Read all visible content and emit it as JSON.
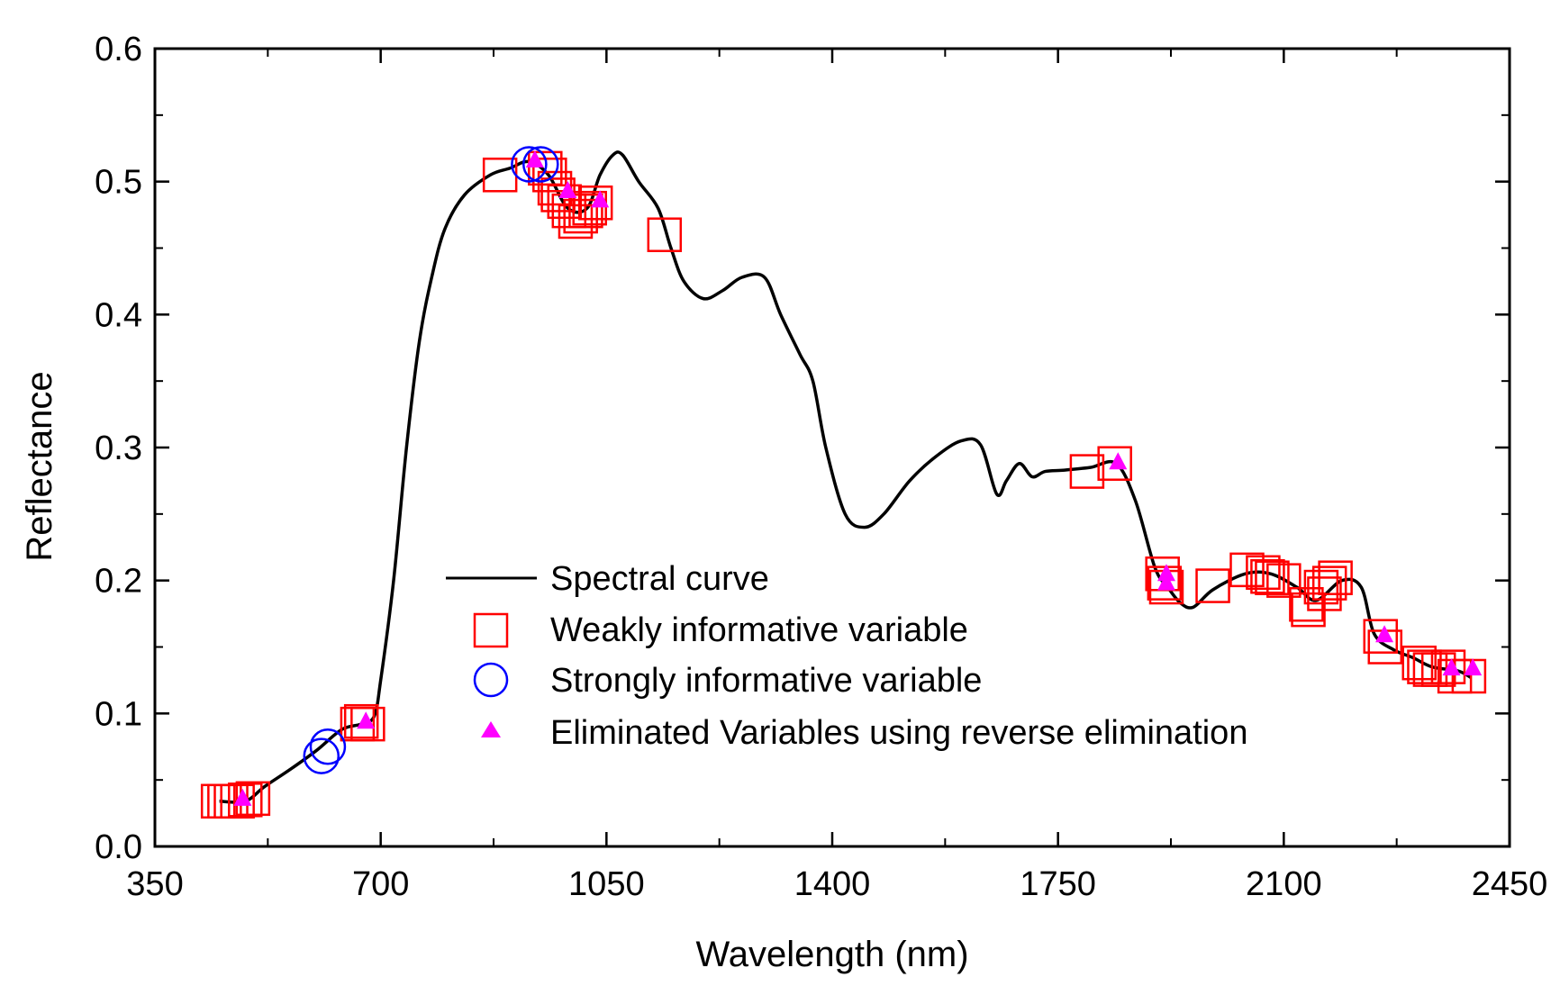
{
  "chart_data": {
    "type": "line",
    "title": "",
    "xlabel": "Wavelength (nm)",
    "ylabel": "Reflectance",
    "xlim": [
      350,
      2450
    ],
    "ylim": [
      0.0,
      0.6
    ],
    "x_ticks": [
      350,
      700,
      1050,
      1400,
      1750,
      2100,
      2450
    ],
    "x_tick_labels": [
      "350",
      "700",
      "1050",
      "1400",
      "1750",
      "2100",
      "2450"
    ],
    "y_ticks": [
      0.0,
      0.1,
      0.2,
      0.3,
      0.4,
      0.5,
      0.6
    ],
    "y_tick_labels": [
      "0.0",
      "0.1",
      "0.2",
      "0.3",
      "0.4",
      "0.5",
      "0.6"
    ],
    "legend_position": "center-bottom",
    "colors": {
      "curve": "#000000",
      "weak": "#ff0000",
      "strong": "#0000ff",
      "eliminated": "#ff00ff"
    },
    "series": [
      {
        "name": "Spectral curve",
        "kind": "line",
        "points": [
          [
            450,
            0.034
          ],
          [
            490,
            0.034
          ],
          [
            520,
            0.045
          ],
          [
            560,
            0.058
          ],
          [
            600,
            0.072
          ],
          [
            640,
            0.088
          ],
          [
            670,
            0.092
          ],
          [
            690,
            0.098
          ],
          [
            700,
            0.125
          ],
          [
            720,
            0.2
          ],
          [
            740,
            0.3
          ],
          [
            760,
            0.38
          ],
          [
            780,
            0.43
          ],
          [
            800,
            0.465
          ],
          [
            830,
            0.49
          ],
          [
            870,
            0.505
          ],
          [
            900,
            0.51
          ],
          [
            930,
            0.515
          ],
          [
            960,
            0.505
          ],
          [
            990,
            0.48
          ],
          [
            1020,
            0.48
          ],
          [
            1040,
            0.505
          ],
          [
            1060,
            0.52
          ],
          [
            1075,
            0.52
          ],
          [
            1100,
            0.5
          ],
          [
            1130,
            0.48
          ],
          [
            1150,
            0.45
          ],
          [
            1170,
            0.425
          ],
          [
            1200,
            0.412
          ],
          [
            1230,
            0.418
          ],
          [
            1260,
            0.428
          ],
          [
            1295,
            0.428
          ],
          [
            1320,
            0.4
          ],
          [
            1350,
            0.37
          ],
          [
            1370,
            0.35
          ],
          [
            1390,
            0.3
          ],
          [
            1420,
            0.25
          ],
          [
            1450,
            0.24
          ],
          [
            1480,
            0.25
          ],
          [
            1520,
            0.275
          ],
          [
            1560,
            0.293
          ],
          [
            1600,
            0.305
          ],
          [
            1630,
            0.302
          ],
          [
            1655,
            0.265
          ],
          [
            1670,
            0.275
          ],
          [
            1690,
            0.288
          ],
          [
            1710,
            0.278
          ],
          [
            1730,
            0.282
          ],
          [
            1760,
            0.283
          ],
          [
            1800,
            0.285
          ],
          [
            1840,
            0.288
          ],
          [
            1870,
            0.26
          ],
          [
            1900,
            0.21
          ],
          [
            1920,
            0.195
          ],
          [
            1940,
            0.183
          ],
          [
            1960,
            0.18
          ],
          [
            1990,
            0.193
          ],
          [
            2040,
            0.205
          ],
          [
            2080,
            0.205
          ],
          [
            2120,
            0.195
          ],
          [
            2150,
            0.185
          ],
          [
            2190,
            0.2
          ],
          [
            2220,
            0.195
          ],
          [
            2240,
            0.16
          ],
          [
            2270,
            0.148
          ],
          [
            2300,
            0.142
          ],
          [
            2330,
            0.135
          ],
          [
            2370,
            0.132
          ],
          [
            2390,
            0.127
          ]
        ]
      },
      {
        "name": "Weakly informative variable",
        "kind": "marker-square",
        "points": [
          [
            448,
            0.034
          ],
          [
            458,
            0.034
          ],
          [
            468,
            0.034
          ],
          [
            478,
            0.034
          ],
          [
            490,
            0.035
          ],
          [
            502,
            0.036
          ],
          [
            664,
            0.092
          ],
          [
            670,
            0.094
          ],
          [
            680,
            0.092
          ],
          [
            885,
            0.505
          ],
          [
            955,
            0.51
          ],
          [
            962,
            0.505
          ],
          [
            970,
            0.495
          ],
          [
            975,
            0.49
          ],
          [
            985,
            0.485
          ],
          [
            992,
            0.478
          ],
          [
            1002,
            0.47
          ],
          [
            1010,
            0.474
          ],
          [
            1018,
            0.478
          ],
          [
            1024,
            0.48
          ],
          [
            1033,
            0.484
          ],
          [
            1140,
            0.46
          ],
          [
            1795,
            0.282
          ],
          [
            1838,
            0.288
          ],
          [
            1912,
            0.205
          ],
          [
            1915,
            0.198
          ],
          [
            1918,
            0.195
          ],
          [
            1990,
            0.196
          ],
          [
            2043,
            0.208
          ],
          [
            2068,
            0.206
          ],
          [
            2075,
            0.203
          ],
          [
            2082,
            0.202
          ],
          [
            2100,
            0.2
          ],
          [
            2135,
            0.182
          ],
          [
            2138,
            0.178
          ],
          [
            2158,
            0.195
          ],
          [
            2163,
            0.19
          ],
          [
            2171,
            0.198
          ],
          [
            2180,
            0.202
          ],
          [
            2250,
            0.158
          ],
          [
            2257,
            0.15
          ],
          [
            2310,
            0.138
          ],
          [
            2318,
            0.135
          ],
          [
            2327,
            0.133
          ],
          [
            2340,
            0.133
          ],
          [
            2355,
            0.135
          ],
          [
            2365,
            0.128
          ],
          [
            2387,
            0.128
          ]
        ]
      },
      {
        "name": "Strongly informative variable",
        "kind": "marker-circle",
        "points": [
          [
            608,
            0.068
          ],
          [
            618,
            0.075
          ],
          [
            930,
            0.513
          ],
          [
            948,
            0.513
          ]
        ]
      },
      {
        "name": "Eliminated Variables using reverse elimination",
        "kind": "marker-triangle",
        "points": [
          [
            486,
            0.036
          ],
          [
            677,
            0.094
          ],
          [
            939,
            0.516
          ],
          [
            990,
            0.493
          ],
          [
            1040,
            0.486
          ],
          [
            1843,
            0.289
          ],
          [
            1918,
            0.205
          ],
          [
            1918,
            0.198
          ],
          [
            2256,
            0.159
          ],
          [
            2360,
            0.134
          ],
          [
            2393,
            0.134
          ]
        ]
      }
    ]
  }
}
